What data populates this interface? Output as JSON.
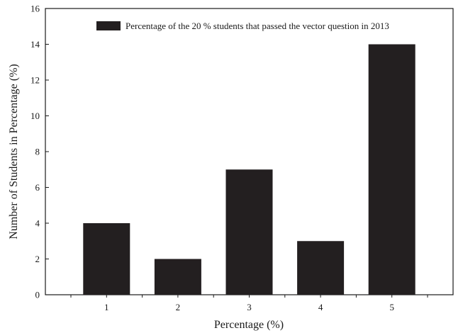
{
  "chart_data": {
    "type": "bar",
    "categories": [
      "1",
      "2",
      "3",
      "4",
      "5"
    ],
    "series": [
      {
        "name": "Percentage of the 20 % students that passed the vector question in 2013",
        "values": [
          4,
          2,
          7,
          3,
          14
        ]
      }
    ],
    "xlabel": "Percentage (%)",
    "ylabel": "Number of Students in Percentage (%)",
    "ylim": [
      0,
      16
    ],
    "yticks": [
      0,
      2,
      4,
      6,
      8,
      10,
      12,
      14,
      16
    ],
    "grid": false,
    "legend_position": "top",
    "bar_color": "#231f20"
  }
}
